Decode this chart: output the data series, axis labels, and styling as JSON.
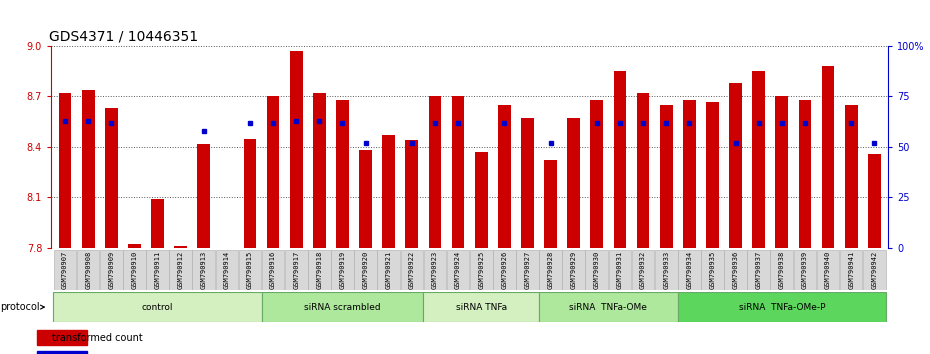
{
  "title": "GDS4371 / 10446351",
  "samples": [
    "GSM790907",
    "GSM790908",
    "GSM790909",
    "GSM790910",
    "GSM790911",
    "GSM790912",
    "GSM790913",
    "GSM790914",
    "GSM790915",
    "GSM790916",
    "GSM790917",
    "GSM790918",
    "GSM790919",
    "GSM790920",
    "GSM790921",
    "GSM790922",
    "GSM790923",
    "GSM790924",
    "GSM790925",
    "GSM790926",
    "GSM790927",
    "GSM790928",
    "GSM790929",
    "GSM790930",
    "GSM790931",
    "GSM790932",
    "GSM790933",
    "GSM790934",
    "GSM790935",
    "GSM790936",
    "GSM790937",
    "GSM790938",
    "GSM790939",
    "GSM790940",
    "GSM790941",
    "GSM790942"
  ],
  "red_values": [
    8.72,
    8.74,
    8.63,
    7.82,
    8.09,
    7.81,
    8.42,
    7.8,
    8.45,
    8.7,
    8.97,
    8.72,
    8.68,
    8.38,
    8.47,
    8.44,
    8.7,
    8.7,
    8.37,
    8.65,
    8.57,
    8.32,
    8.57,
    8.68,
    8.85,
    8.72,
    8.65,
    8.68,
    8.67,
    8.78,
    8.85,
    8.7,
    8.68,
    8.88,
    8.65,
    8.36
  ],
  "blue_values": [
    63,
    63,
    62,
    null,
    null,
    null,
    58,
    null,
    62,
    62,
    63,
    63,
    62,
    52,
    null,
    52,
    62,
    62,
    null,
    62,
    null,
    52,
    null,
    62,
    62,
    62,
    62,
    62,
    null,
    52,
    62,
    62,
    62,
    null,
    62,
    52
  ],
  "groups": [
    {
      "label": "control",
      "start": 0,
      "end": 9,
      "color": "#d4f0c0"
    },
    {
      "label": "siRNA scrambled",
      "start": 9,
      "end": 16,
      "color": "#aee89c"
    },
    {
      "label": "siRNA TNFa",
      "start": 16,
      "end": 21,
      "color": "#d4f0c0"
    },
    {
      "label": "siRNA  TNFa-OMe",
      "start": 21,
      "end": 27,
      "color": "#aee89c"
    },
    {
      "label": "siRNA  TNFa-OMe-P",
      "start": 27,
      "end": 36,
      "color": "#5cd65c"
    }
  ],
  "ylim_left": [
    7.8,
    9.0
  ],
  "ylim_right": [
    0,
    100
  ],
  "yticks_left": [
    7.8,
    8.1,
    8.4,
    8.7,
    9.0
  ],
  "yticks_right": [
    0,
    25,
    50,
    75,
    100
  ],
  "bar_color": "#cc0000",
  "dot_color": "#0000cc",
  "bar_width": 0.55,
  "background_color": "#ffffff",
  "title_fontsize": 10,
  "tick_fontsize": 7,
  "label_fontsize": 7
}
